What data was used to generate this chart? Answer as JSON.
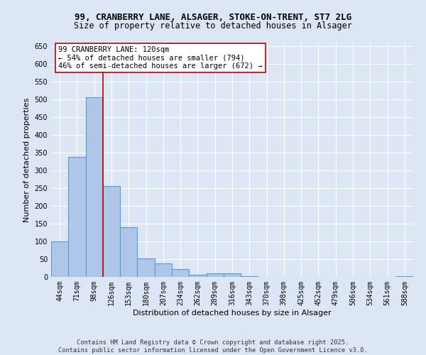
{
  "title_line1": "99, CRANBERRY LANE, ALSAGER, STOKE-ON-TRENT, ST7 2LG",
  "title_line2": "Size of property relative to detached houses in Alsager",
  "xlabel": "Distribution of detached houses by size in Alsager",
  "ylabel": "Number of detached properties",
  "categories": [
    "44sqm",
    "71sqm",
    "98sqm",
    "126sqm",
    "153sqm",
    "180sqm",
    "207sqm",
    "234sqm",
    "262sqm",
    "289sqm",
    "316sqm",
    "343sqm",
    "370sqm",
    "398sqm",
    "425sqm",
    "452sqm",
    "479sqm",
    "506sqm",
    "534sqm",
    "561sqm",
    "588sqm"
  ],
  "values": [
    100,
    338,
    507,
    257,
    140,
    53,
    38,
    22,
    7,
    10,
    10,
    3,
    0,
    0,
    0,
    0,
    0,
    0,
    0,
    0,
    3
  ],
  "bar_color": "#aec6e8",
  "bar_edge_color": "#5b9bd5",
  "vline_x_index": 2.5,
  "vline_color": "#c00000",
  "annotation_text": "99 CRANBERRY LANE: 120sqm\n← 54% of detached houses are smaller (794)\n46% of semi-detached houses are larger (672) →",
  "annotation_box_color": "#ffffff",
  "annotation_box_edge": "#c00000",
  "ylim": [
    0,
    660
  ],
  "yticks": [
    0,
    50,
    100,
    150,
    200,
    250,
    300,
    350,
    400,
    450,
    500,
    550,
    600,
    650
  ],
  "footer": "Contains HM Land Registry data © Crown copyright and database right 2025.\nContains public sector information licensed under the Open Government Licence v3.0.",
  "bg_color": "#dce6f5",
  "grid_color": "#ffffff",
  "title_fontsize": 9,
  "subtitle_fontsize": 8.5,
  "axis_label_fontsize": 8,
  "tick_fontsize": 7,
  "annotation_fontsize": 7.5
}
